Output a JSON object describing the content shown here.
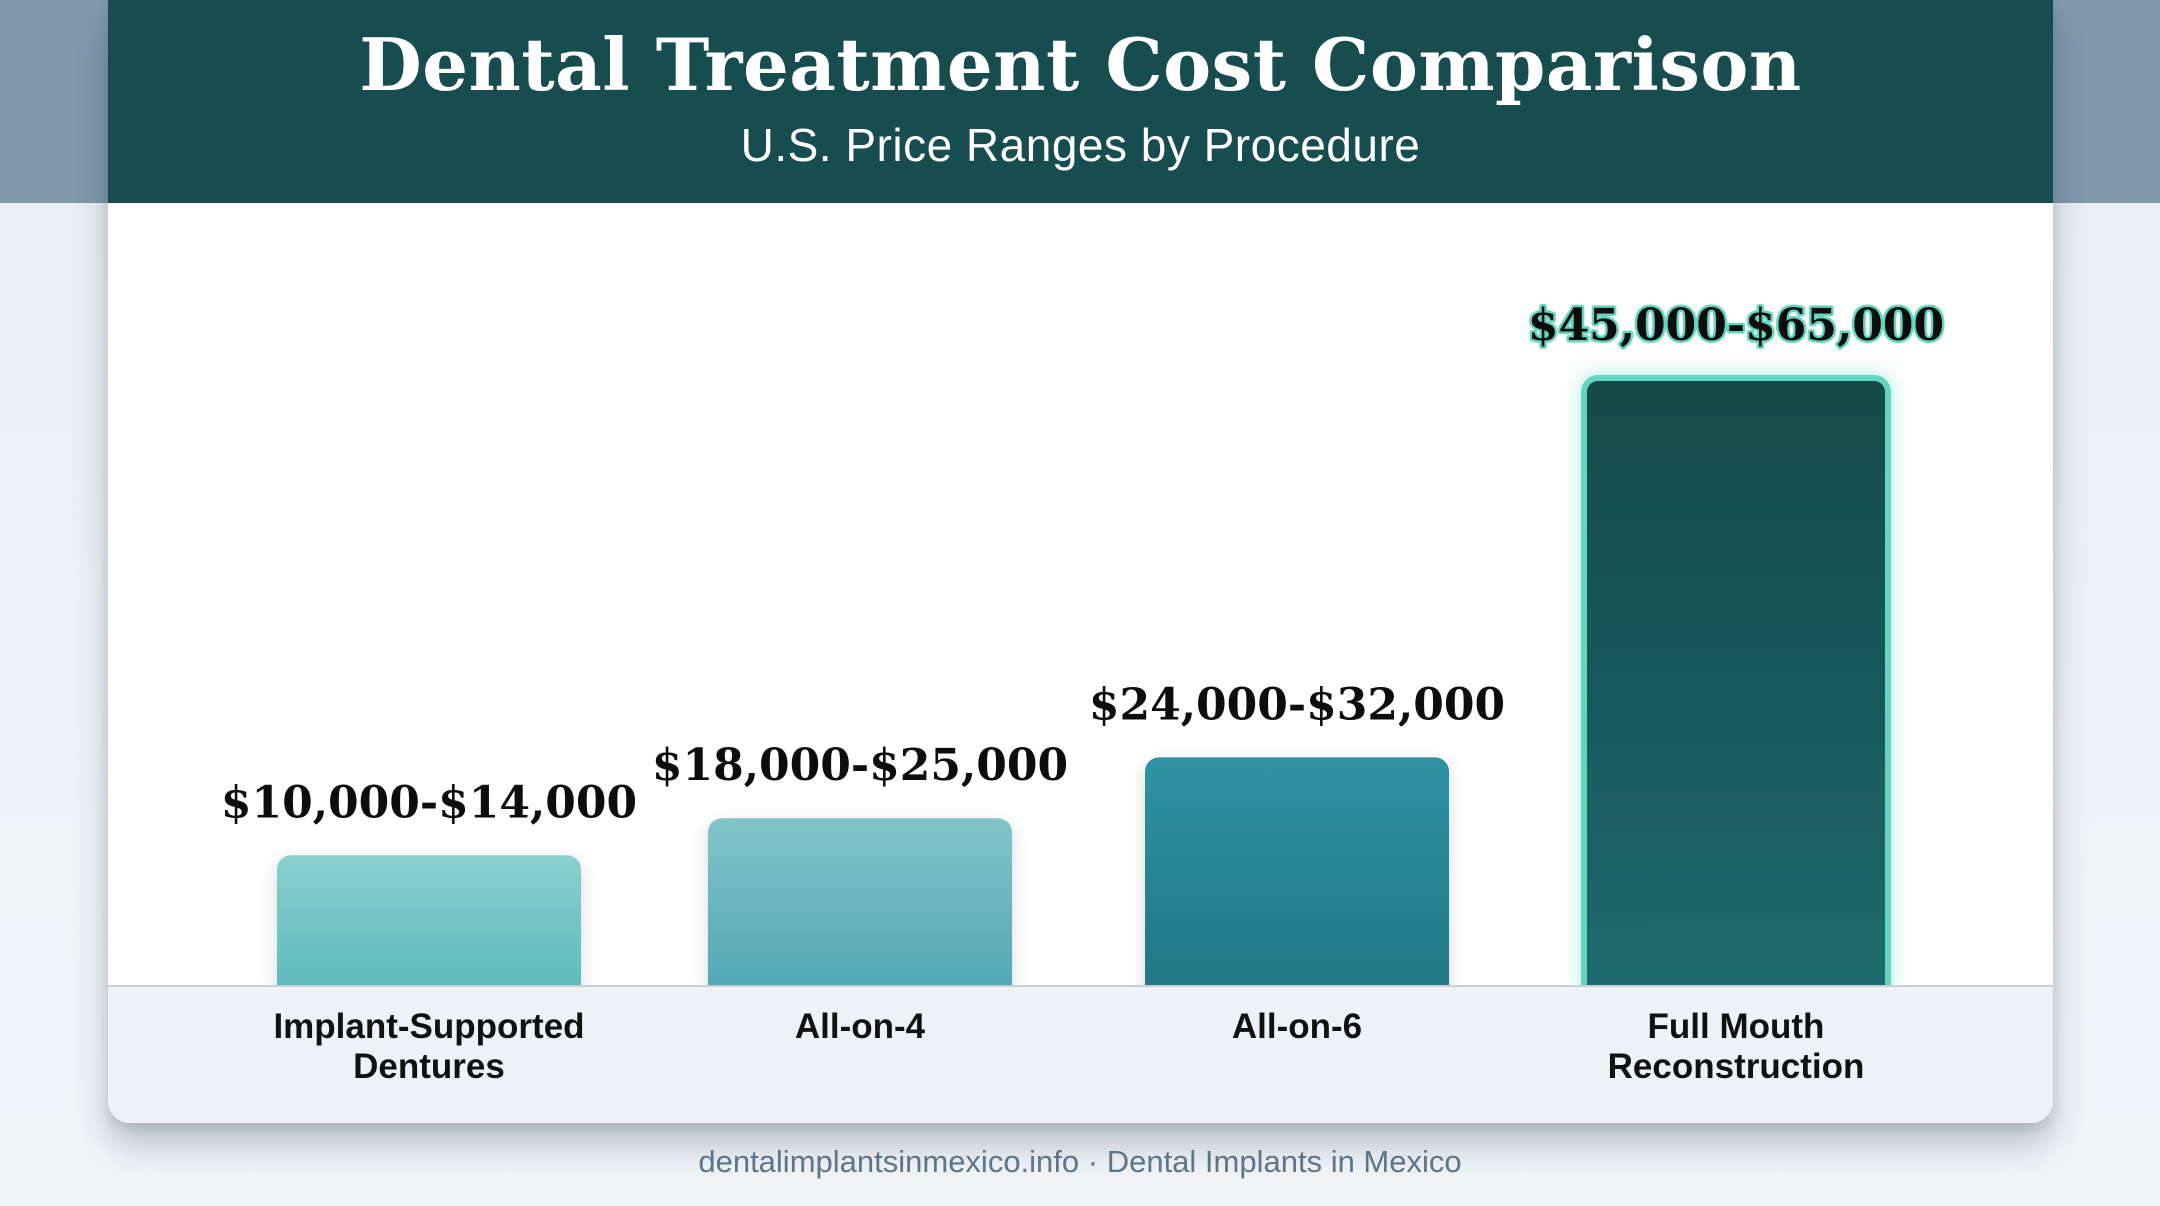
{
  "header": {
    "title": "Dental Treatment Cost Comparison",
    "subtitle": "U.S. Price Ranges by Procedure"
  },
  "footer": {
    "text": "dentalimplantsinmexico.info · Dental Implants in Mexico"
  },
  "colors": {
    "header_bg": "#174d4e",
    "bar_1": "#6cc1c3",
    "bar_2": "#5fb0bd",
    "bar_3": "#2a8a98",
    "bar_4": "#17585a",
    "highlight_outline": "#63d6c0",
    "value_text": "#0d0d0d",
    "category_text": "#111111"
  },
  "chart_data": {
    "type": "bar",
    "title": "Dental Treatment Cost Comparison",
    "subtitle": "U.S. Price Ranges by Procedure",
    "categories": [
      [
        "Implant-Supported",
        "Dentures"
      ],
      [
        "All-on-4"
      ],
      [
        "All-on-6"
      ],
      [
        "Full Mouth",
        "Reconstruction"
      ]
    ],
    "ranges": [
      [
        10000,
        14000
      ],
      [
        18000,
        25000
      ],
      [
        24000,
        32000
      ],
      [
        45000,
        65000
      ]
    ],
    "value_labels": [
      "$10,000-$14,000",
      "$18,000-$25,000",
      "$24,000-$32,000",
      "$45,000-$65,000"
    ],
    "ylim": [
      0,
      65000
    ],
    "grid": false,
    "legend": "none",
    "highlight_index": 3
  }
}
